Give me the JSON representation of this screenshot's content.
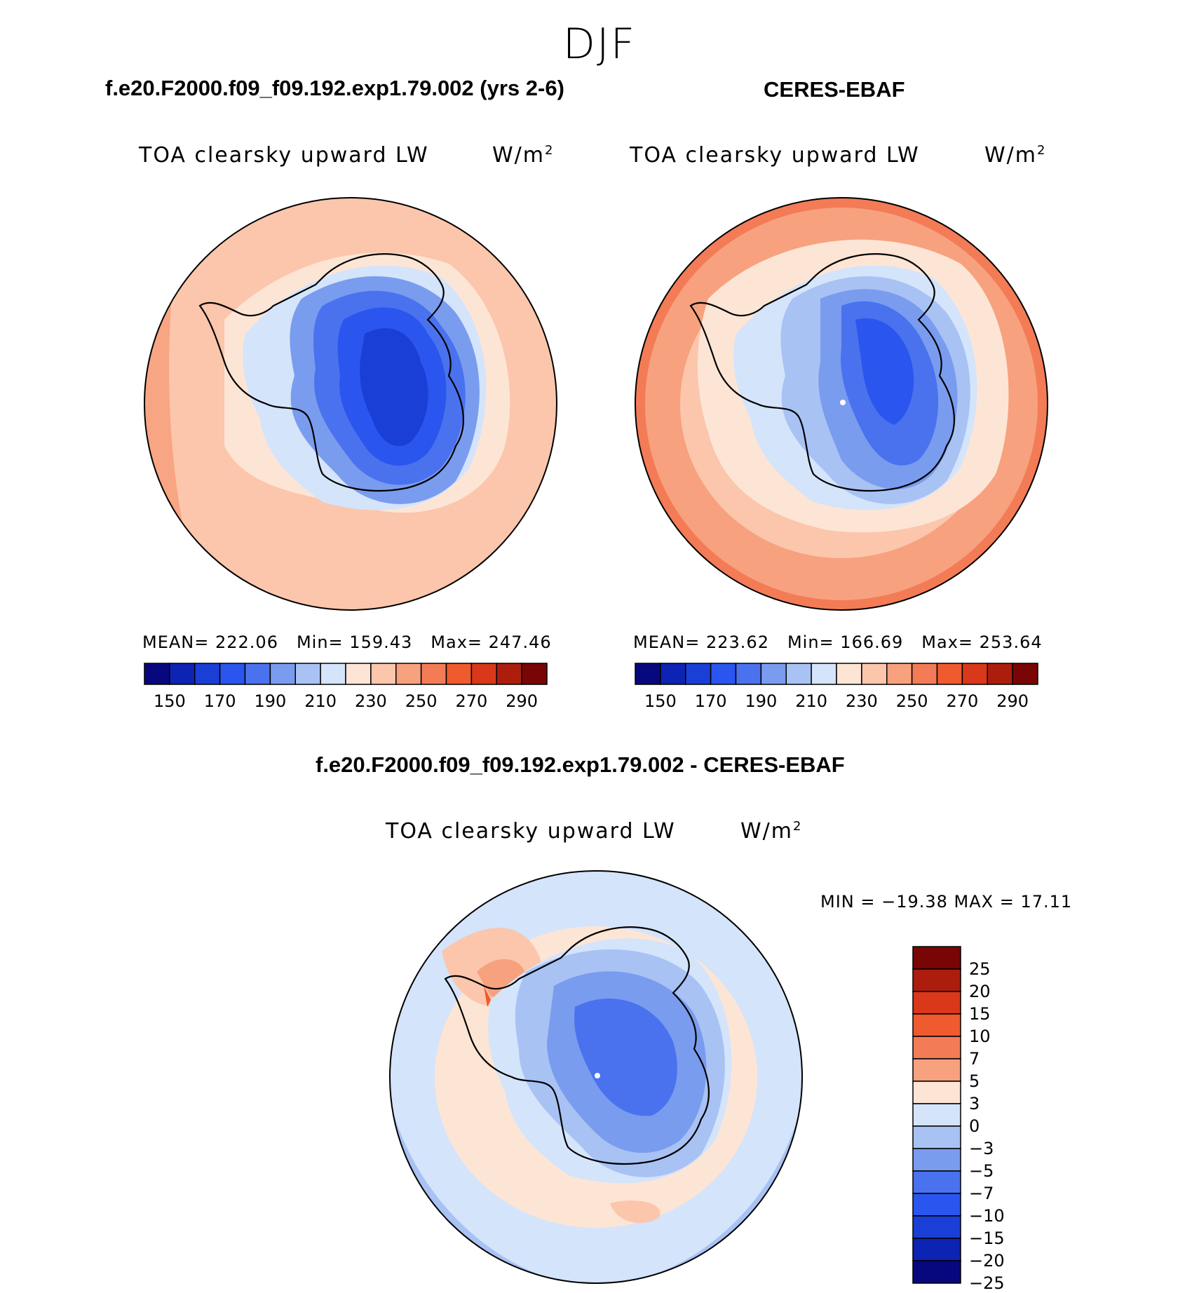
{
  "season": "DJF",
  "panels": [
    {
      "heading": "f.e20.F2000.f09_f09.192.exp1.79.002 (yrs 2-6)",
      "title": "TOA clearsky upward LW",
      "units": "W/m",
      "units_sup": "2",
      "mean": "MEAN= 222.06",
      "min": "Min= 159.43",
      "max": "Max= 247.46"
    },
    {
      "heading": "CERES-EBAF",
      "title": "TOA clearsky upward LW",
      "units": "W/m",
      "units_sup": "2",
      "mean": "MEAN= 223.62",
      "min": "Min= 166.69",
      "max": "Max= 253.64"
    }
  ],
  "abs_colorbar": {
    "colors": [
      "#08087e",
      "#0d23b3",
      "#1a3fd6",
      "#2a55ee",
      "#4a72ee",
      "#7a9cef",
      "#a9c2f4",
      "#d4e4fb",
      "#fde5d5",
      "#fbc6ac",
      "#f7a17f",
      "#f37b56",
      "#ef5a2f",
      "#d9381a",
      "#ad1d0e",
      "#7a0505"
    ],
    "ticks": [
      "150",
      "170",
      "190",
      "210",
      "230",
      "250",
      "270",
      "290"
    ]
  },
  "diff_panel": {
    "heading": "f.e20.F2000.f09_f09.192.exp1.79.002 - CERES-EBAF",
    "title": "TOA clearsky upward LW",
    "units": "W/m",
    "units_sup": "2",
    "minmax": "MIN = −19.38 MAX =   17.11"
  },
  "diff_colorbar": {
    "colors": [
      "#7a0505",
      "#ad1d0e",
      "#d9381a",
      "#ef5a2f",
      "#f37b56",
      "#f7a17f",
      "#fde5d5",
      "#d4e4fb",
      "#a9c2f4",
      "#7a9cef",
      "#4a72ee",
      "#2a55ee",
      "#1a3fd6",
      "#0d23b3",
      "#08087e"
    ],
    "ticks": [
      "25",
      "20",
      "15",
      "10",
      "7",
      "5",
      "3",
      "0",
      "−3",
      "−5",
      "−7",
      "−10",
      "−15",
      "−20",
      "−25"
    ]
  }
}
